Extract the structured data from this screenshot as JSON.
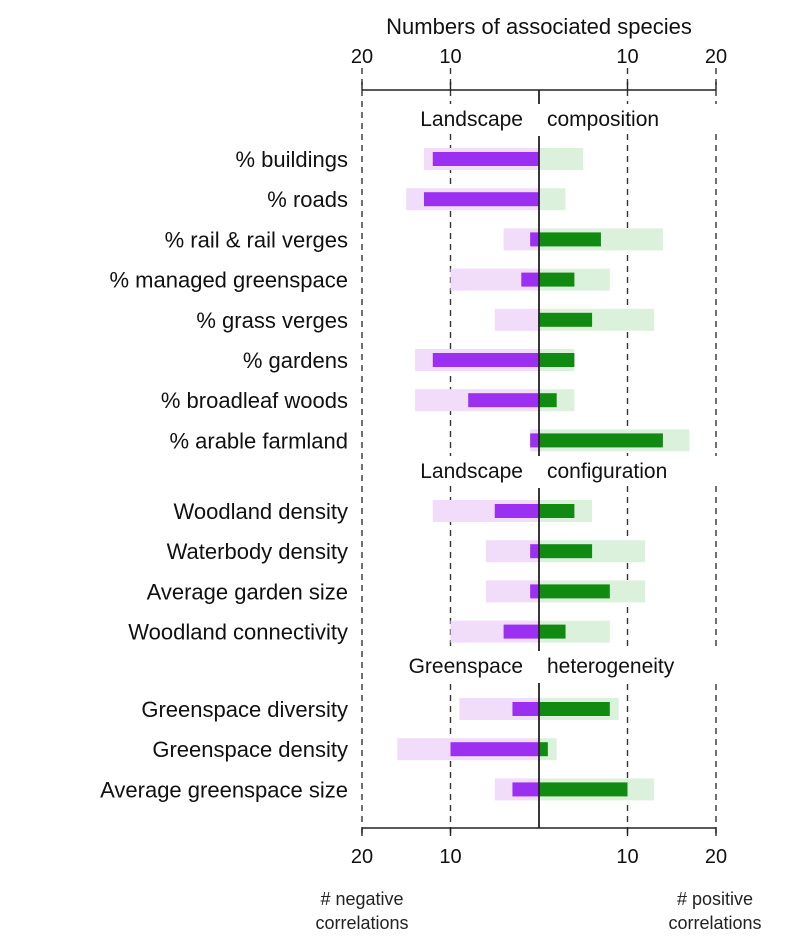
{
  "chart_data": {
    "type": "bar",
    "title": "Numbers of associated species",
    "xlim": [
      -20,
      20
    ],
    "tick_values": [
      -20,
      -10,
      10,
      20
    ],
    "tick_labels": [
      "20",
      "10",
      "10",
      "20"
    ],
    "grid": "dashed vertical lines at 10 and 20 on both sides",
    "colors": {
      "negative_dark": "#9b30f0",
      "negative_light": "#f1dcfa",
      "positive_dark": "#118a11",
      "positive_light": "#dcf1dc",
      "axis": "#222222",
      "grid": "#333333"
    },
    "sections": [
      {
        "title_left": "Landscape",
        "title_right": "composition",
        "categories": [
          {
            "label": "% buildings",
            "neg": 12,
            "neg_light": 13,
            "pos": 0,
            "pos_light": 5
          },
          {
            "label": "% roads",
            "neg": 13,
            "neg_light": 15,
            "pos": 0,
            "pos_light": 3
          },
          {
            "label": "% rail & rail verges",
            "neg": 1,
            "neg_light": 4,
            "pos": 7,
            "pos_light": 14
          },
          {
            "label": "% managed greenspace",
            "neg": 2,
            "neg_light": 10,
            "pos": 4,
            "pos_light": 8
          },
          {
            "label": "% grass verges",
            "neg": 0,
            "neg_light": 5,
            "pos": 6,
            "pos_light": 13
          },
          {
            "label": "% gardens",
            "neg": 12,
            "neg_light": 14,
            "pos": 4,
            "pos_light": 4
          },
          {
            "label": "% broadleaf woods",
            "neg": 8,
            "neg_light": 14,
            "pos": 2,
            "pos_light": 4
          },
          {
            "label": "% arable farmland",
            "neg": 1,
            "neg_light": 1,
            "pos": 14,
            "pos_light": 17
          }
        ]
      },
      {
        "title_left": "Landscape",
        "title_right": "configuration",
        "categories": [
          {
            "label": "Woodland density",
            "neg": 5,
            "neg_light": 12,
            "pos": 4,
            "pos_light": 6
          },
          {
            "label": "Waterbody density",
            "neg": 1,
            "neg_light": 6,
            "pos": 6,
            "pos_light": 12
          },
          {
            "label": "Average garden size",
            "neg": 1,
            "neg_light": 6,
            "pos": 8,
            "pos_light": 12
          },
          {
            "label": "Woodland connectivity",
            "neg": 4,
            "neg_light": 10,
            "pos": 3,
            "pos_light": 8
          }
        ]
      },
      {
        "title_left": "Greenspace",
        "title_right": "heterogeneity",
        "categories": [
          {
            "label": "Greenspace diversity",
            "neg": 3,
            "neg_light": 9,
            "pos": 8,
            "pos_light": 9
          },
          {
            "label": "Greenspace density",
            "neg": 10,
            "neg_light": 16,
            "pos": 1,
            "pos_light": 2
          },
          {
            "label": "Average greenspace size",
            "neg": 3,
            "neg_light": 5,
            "pos": 10,
            "pos_light": 13
          }
        ]
      }
    ],
    "footer_left": [
      "# negative",
      "correlations"
    ],
    "footer_right": [
      "# positive",
      "correlations"
    ]
  }
}
